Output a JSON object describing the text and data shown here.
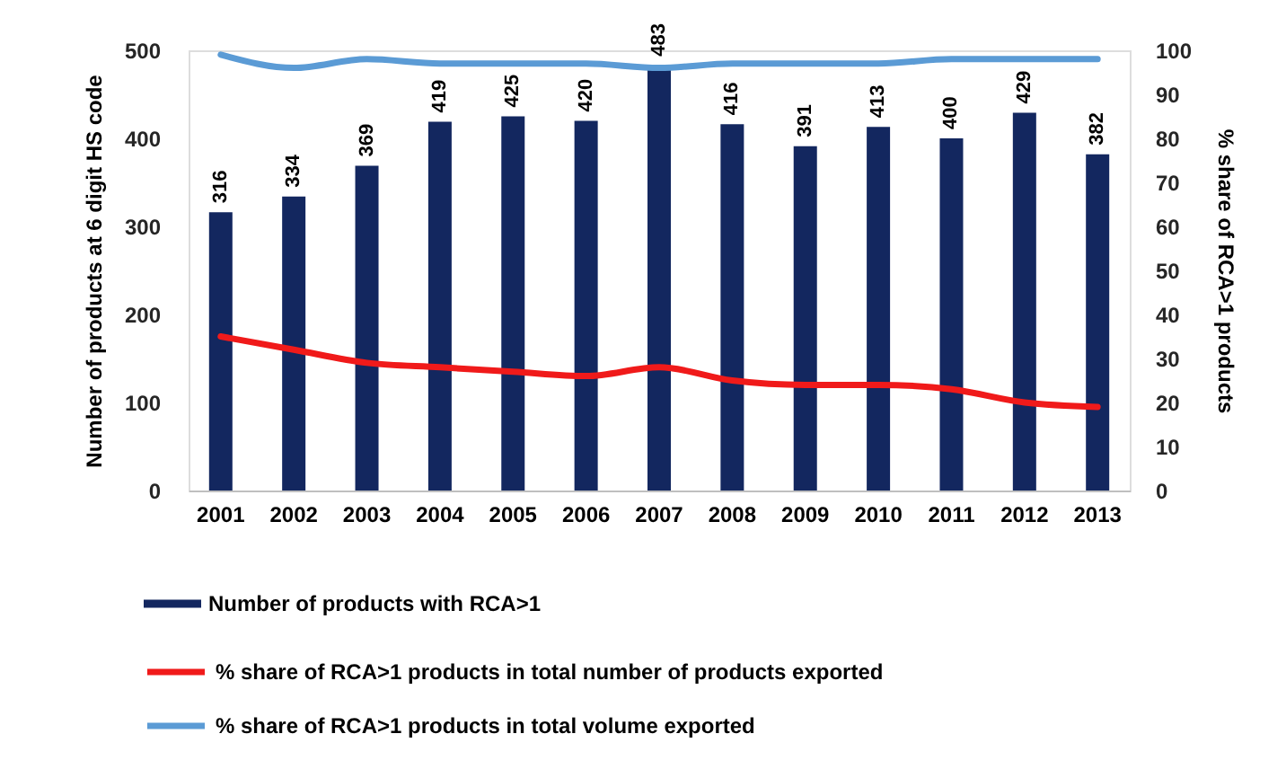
{
  "chart_data": {
    "type": "bar",
    "categories": [
      "2001",
      "2002",
      "2003",
      "2004",
      "2005",
      "2006",
      "2007",
      "2008",
      "2009",
      "2010",
      "2011",
      "2012",
      "2013"
    ],
    "series": [
      {
        "name": "Number of products with RCA>1",
        "color": "#13275f",
        "values": [
          316,
          334,
          369,
          419,
          425,
          420,
          483,
          416,
          391,
          413,
          400,
          429,
          382
        ],
        "value_labels": [
          "316",
          "334",
          "369",
          "419",
          "425",
          "420",
          "483",
          "416",
          "391",
          "413",
          "400",
          "429",
          "382"
        ]
      },
      {
        "name": "% share of RCA>1 products in total number of products exported",
        "type": "line",
        "axis": "y2",
        "color": "#f01a1a",
        "values": [
          35,
          32,
          29,
          28,
          27,
          26,
          28,
          25,
          24,
          24,
          23,
          20,
          19
        ]
      },
      {
        "name": "% share of RCA>1 products in total volume exported",
        "type": "line",
        "axis": "y2",
        "color": "#5b9bd5",
        "values": [
          99,
          96,
          98,
          97,
          97,
          97,
          96,
          97,
          97,
          97,
          98,
          98,
          98
        ]
      }
    ],
    "ylabel": "Number of products at 6 digit HS code",
    "y2label": "% share of RCA>1 products",
    "ylim": [
      0,
      500
    ],
    "yticks": [
      0,
      100,
      200,
      300,
      400,
      500
    ],
    "y2lim": [
      0,
      100
    ],
    "y2ticks": [
      0,
      10,
      20,
      30,
      40,
      50,
      60,
      70,
      80,
      90,
      100
    ],
    "grid": false,
    "legend": "bottom"
  }
}
